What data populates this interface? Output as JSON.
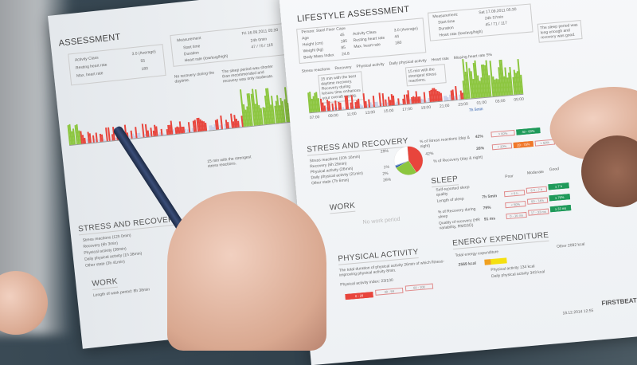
{
  "right_page": {
    "title": "LIFESTYLE ASSESSMENT",
    "person": "Person: Steel Fixer Case",
    "fields": [
      {
        "label": "Age",
        "value": "45"
      },
      {
        "label": "Height (cm)",
        "value": "185"
      },
      {
        "label": "Weight (kg)",
        "value": "85"
      },
      {
        "label": "Body Mass Index",
        "value": "24.8"
      }
    ],
    "fields2": [
      {
        "label": "Activity Class",
        "value": "3.0 (Average)"
      },
      {
        "label": "Resting heart rate",
        "value": "44"
      },
      {
        "label": "Max. heart rate",
        "value": "180"
      }
    ],
    "measurement": {
      "label": "Measurement:",
      "start_label": "Start time",
      "start": "Sat 17.09.2011 05:30",
      "duration_label": "Duration",
      "duration": "24h 57min",
      "hr_label": "Heart rate (low/avg/high)",
      "hr": "45 / 71 / 117"
    },
    "legend": [
      "Stress reactions",
      "Recovery",
      "Physical activity",
      "Daily physical activity",
      "Heart rate",
      "Missing heart rate 5%"
    ],
    "notes": [
      "15 min with the best daytime recovery. Recovery during leisure time enhances your overall coping.",
      "15 min with the strongest stress reactions.",
      "The sleep period was long enough and recovery was good."
    ],
    "x_ticks": [
      "07:00",
      "09:00",
      "11:00",
      "13:00",
      "15:00",
      "17:00",
      "19:00",
      "21:00",
      "23:00",
      "01:00",
      "03:00",
      "05:00"
    ],
    "sleep_marker": "7h 5min",
    "stress": {
      "title": "STRESS AND RECOVERY",
      "items": [
        "Stress reactions (10h 16min)",
        "Recovery (6h 29min)",
        "Physical activity (26min)",
        "Daily physical activity (21min)",
        "Other state (7h 6min)"
      ],
      "pie": [
        {
          "label": "42%",
          "value": 42,
          "color": "#e8453c"
        },
        {
          "label": "26%",
          "value": 26,
          "color": "#8cc63f"
        },
        {
          "label": "2%",
          "value": 2,
          "color": "#2255aa"
        },
        {
          "label": "1%",
          "value": 1,
          "color": "#5588dd"
        },
        {
          "label": "29%",
          "value": 29,
          "color": "#ffffff"
        }
      ],
      "stress_pct_label": "% of Stress reactions (day & night)",
      "stress_pct": "42%",
      "recovery_pct_label": "% of Recovery (day & night)",
      "recovery_pct": "26%",
      "scale1": [
        "> 60%",
        "40 - 60%"
      ],
      "scale2_heads": [
        "Low",
        "Moderate",
        "Good"
      ],
      "scale2": [
        "< 20%",
        "20 - 75%",
        "> 50%"
      ]
    },
    "work": {
      "title": "WORK",
      "empty": "No work period"
    },
    "sleep": {
      "title": "SLEEP",
      "heads": [
        "Poor",
        "Moderate",
        "Good"
      ],
      "rows": [
        {
          "label": "Self-reported sleep quality",
          "value": ""
        },
        {
          "label": "Length of sleep",
          "value": "7h 5min",
          "opts": [
            "< 6 h",
            "6 h - 7 h",
            "≥ 7 h"
          ]
        },
        {
          "label": "% of Recovery during sleep",
          "value": "79%",
          "opts": [
            "< 50%",
            "50 - 74%",
            "≥ 75%"
          ]
        },
        {
          "label": "Quality of recovery (HR variability, RMSSD)",
          "value": "91 ms",
          "opts": [
            "0 - 16 ms",
            "17 - 33 ms",
            "≥ 33 ms"
          ]
        }
      ]
    },
    "activity": {
      "title": "PHYSICAL ACTIVITY",
      "text": "The total duration of physical activity 26min of which fitness-improving physical activity 8min.",
      "index_label": "Physical activity index: 23/100",
      "heads": [
        "Low",
        "Moderate",
        "Good"
      ],
      "opts": [
        "0 - 29",
        "30 - 59",
        "60 - 100"
      ]
    },
    "energy": {
      "title": "ENERGY EXPENDITURE",
      "total_label": "Total energy expenditure",
      "total": "2569 kcal",
      "items": [
        "Physical activity 134 kcal",
        "Daily physical activity 343 kcal",
        "Other 2092 kcal"
      ]
    },
    "footer": {
      "date": "18.12.2014 12:55",
      "brand": "FIRSTBEAT"
    }
  },
  "left_page": {
    "title": "ASSESSMENT",
    "fields": [
      {
        "label": "Activity Class",
        "value": "3.0 (Average)"
      },
      {
        "label": "Resting heart rate",
        "value": "55"
      },
      {
        "label": "Max. heart rate",
        "value": "180"
      }
    ],
    "measurement": {
      "label": "Measurement",
      "start_label": "Start time",
      "start": "Fri 16.09.2011 05:30",
      "duration_label": "Duration",
      "duration": "24h 0min",
      "hr_label": "Heart rate (low/avg/high)",
      "hr": "47 / 75 / 118"
    },
    "notes": [
      "No recovery during the daytime.",
      "The sleep period was shorter than recommended and recovery was only moderate.",
      "15 min with the strongest stress reactions."
    ],
    "stress_title": "STRESS AND RECOVERY",
    "stress_items": [
      "Stress reactions (12h 0min)",
      "Recovery (6h 3min)",
      "Physical activity (38min)",
      "Daily physical activity (1h 38min)",
      "Other state (3h 41min)"
    ],
    "work_title": "WORK",
    "work_text": "Length of work period: 8h 38min"
  },
  "colors": {
    "stress": "#e8453c",
    "recovery": "#8cc63f",
    "activity": "#2255aa",
    "good": "#1f9a5a"
  }
}
